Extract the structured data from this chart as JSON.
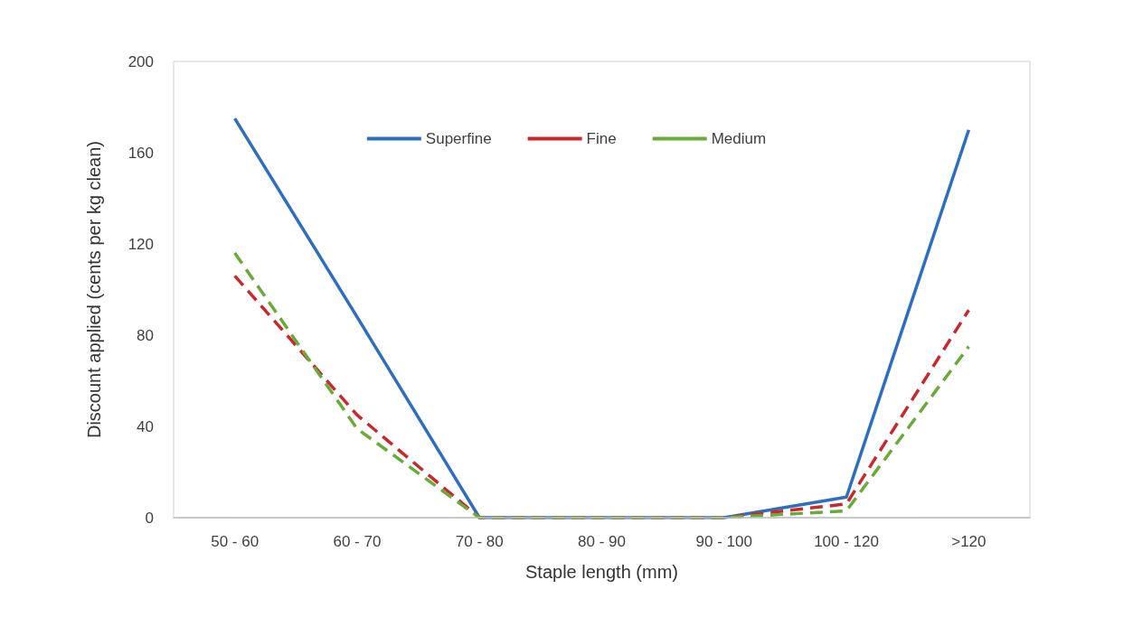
{
  "chart_data": {
    "type": "line",
    "xlabel": "Staple length (mm)",
    "ylabel": "Discount applied (cents per kg clean)",
    "categories": [
      "50 - 60",
      "60 - 70",
      "70 - 80",
      "80 - 90",
      "90 - 100",
      "100 - 120",
      ">120"
    ],
    "series": [
      {
        "name": "Superfine",
        "color": "#2e6fbd",
        "line_style": "solid",
        "values": [
          175,
          88,
          0,
          0,
          0,
          9,
          170
        ]
      },
      {
        "name": "Fine",
        "color": "#c8282e",
        "line_style": "dashed",
        "values": [
          106,
          45,
          0,
          0,
          0,
          6,
          91
        ]
      },
      {
        "name": "Medium",
        "color": "#6aaa3a",
        "line_style": "dashed",
        "values": [
          116,
          39,
          0,
          0,
          0,
          3,
          75
        ]
      }
    ],
    "ylim": [
      0,
      200
    ],
    "yticks": [
      0,
      40,
      80,
      120,
      160,
      200
    ],
    "grid": false,
    "legend": "top",
    "marker": "none"
  }
}
